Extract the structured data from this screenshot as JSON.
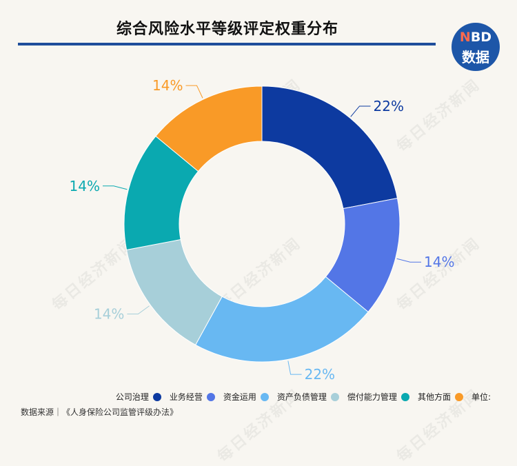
{
  "title": "综合风险水平等级评定权重分布",
  "logo": {
    "line1_n": "N",
    "line1_rest": "BD",
    "line2": "数据"
  },
  "legend_unit_label": "单位:",
  "source": "数据来源｜《人身保险公司监管评级办法》",
  "watermark_text": "每日经济新闻",
  "chart_data": {
    "type": "pie",
    "donut": true,
    "title": "综合风险水平等级评定权重分布",
    "categories": [
      "公司治理",
      "业务经营",
      "资金运用",
      "资产负债管理",
      "偿付能力管理",
      "其他方面"
    ],
    "values": [
      22,
      14,
      22,
      14,
      14,
      14
    ],
    "labels": [
      "22%",
      "14%",
      "22%",
      "14%",
      "14%",
      "14%"
    ],
    "colors": [
      "#0d3aa0",
      "#5376e6",
      "#68b8f2",
      "#a7cfd9",
      "#0aa9b0",
      "#f99a27"
    ],
    "legend_position": "bottom-right"
  }
}
